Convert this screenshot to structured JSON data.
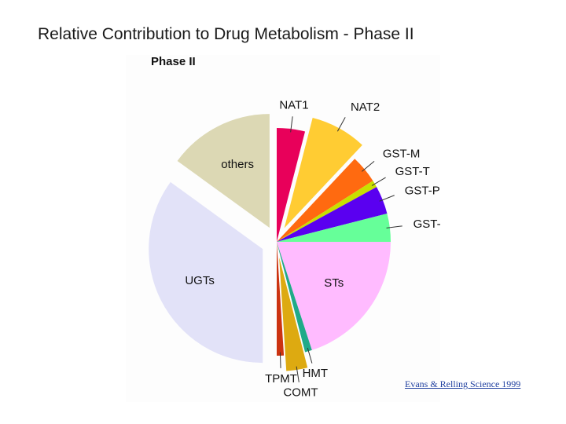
{
  "chart_data": {
    "type": "pie",
    "title": "Relative Contribution to Drug Metabolism - Phase II",
    "subtitle": "Phase II",
    "source": "Evans & Relling Science 1999",
    "categories": [
      "NAT1",
      "NAT2",
      "GST-M",
      "GST-T",
      "GST-P",
      "GST-A",
      "STs",
      "HMT",
      "COMT",
      "TPMT",
      "UGTs",
      "others"
    ],
    "values": [
      4,
      8,
      4,
      1,
      4,
      4,
      20,
      1,
      3,
      1,
      35,
      15
    ],
    "colors": [
      "#e8005a",
      "#ffcc33",
      "#ff6a10",
      "#c8e000",
      "#5a00f0",
      "#66ff99",
      "#ffbbff",
      "#20aa88",
      "#ddaa11",
      "#cc3311",
      "#e2e2f8",
      "#dcd8b4"
    ],
    "explode": [
      false,
      true,
      false,
      false,
      false,
      false,
      false,
      false,
      true,
      false,
      true,
      true
    ]
  }
}
